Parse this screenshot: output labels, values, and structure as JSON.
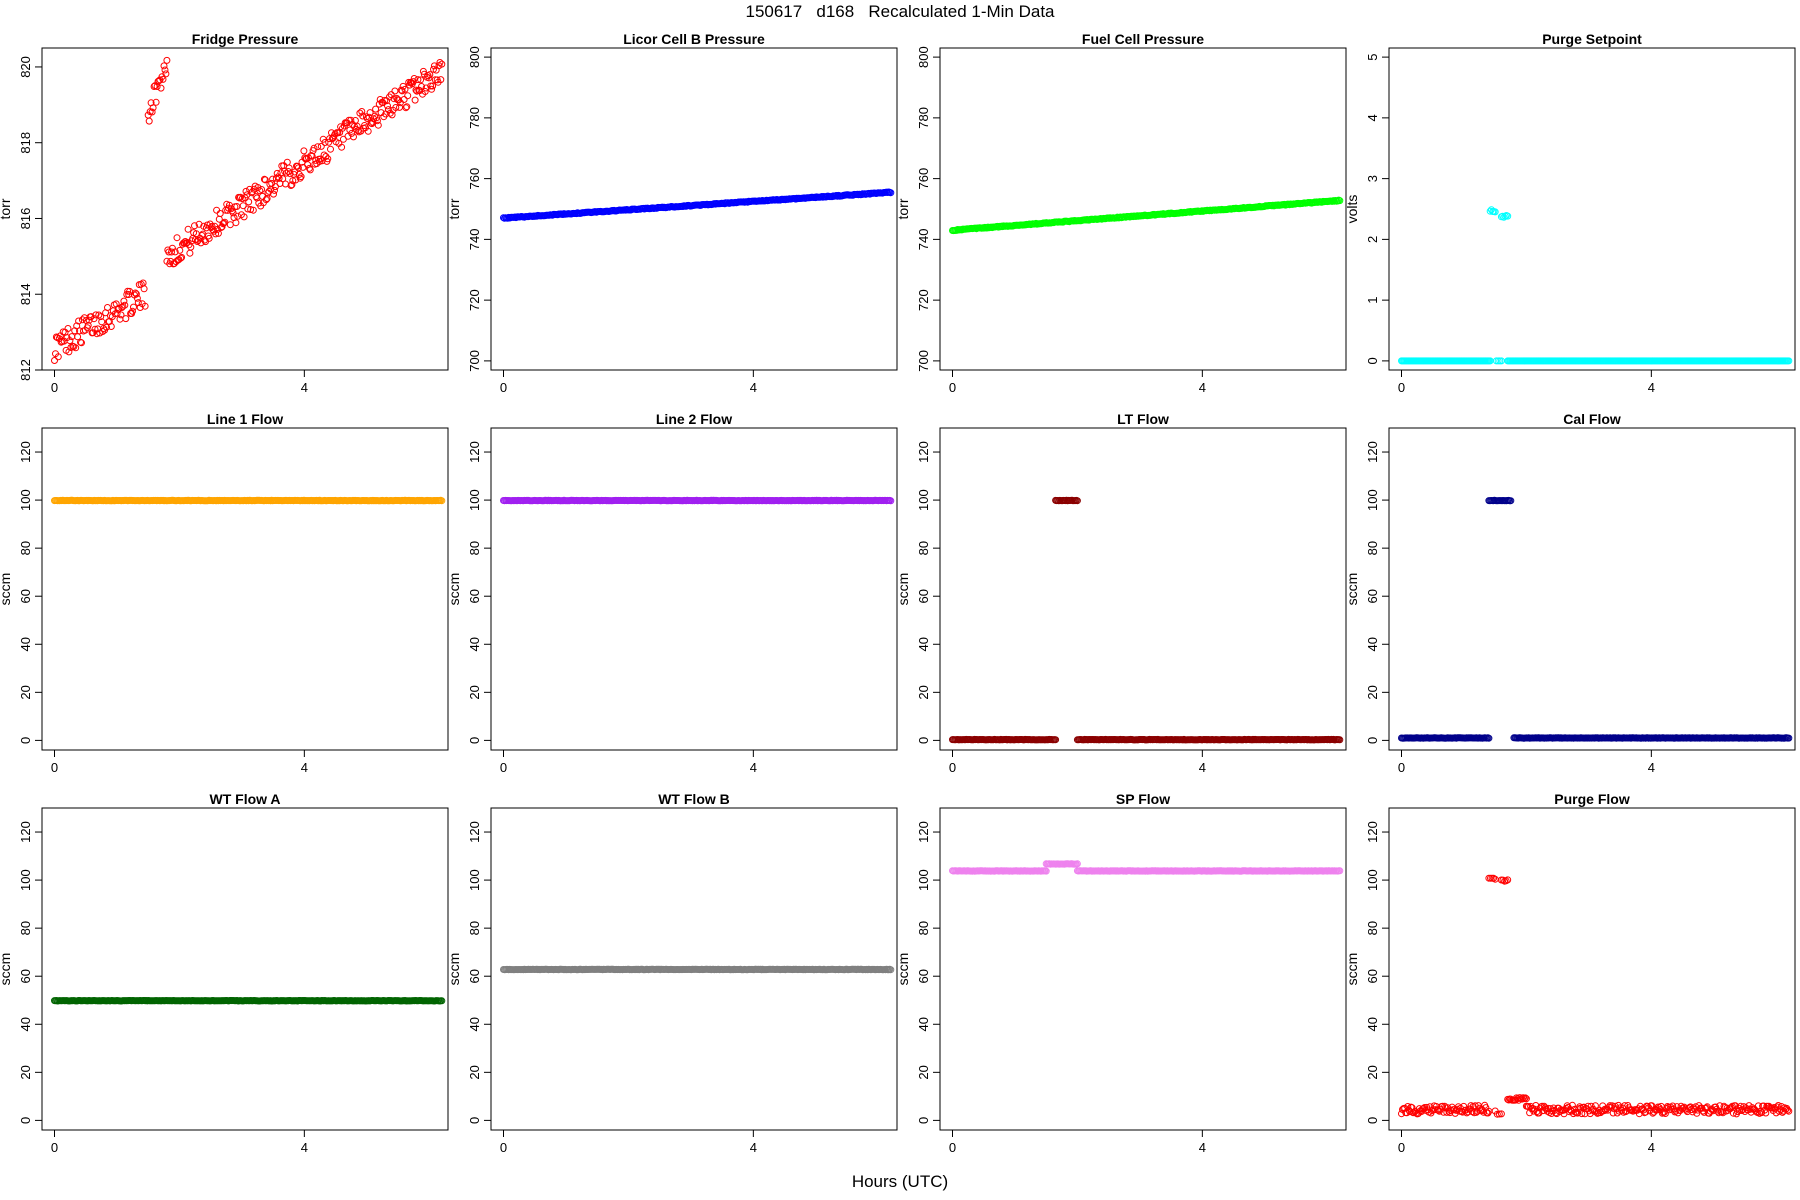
{
  "figure": {
    "title": "150617   d168   Recalculated 1-Min Data",
    "xlabel": "Hours (UTC)"
  },
  "chart_data": [
    {
      "type": "scatter",
      "title": "Fridge Pressure",
      "ylabel": "torr",
      "color": "#ff0000",
      "marker": "open-circle",
      "xlim": [
        -0.2,
        6.3
      ],
      "ylim": [
        812,
        820.5
      ],
      "xticks": [
        0,
        4
      ],
      "yticks": [
        812,
        814,
        816,
        818,
        820
      ],
      "segments": [
        {
          "x0": 0.0,
          "x1": 1.45,
          "y0": 812.6,
          "y1": 814.0,
          "noise": 0.35,
          "n": 95
        },
        {
          "x0": 1.5,
          "x1": 1.8,
          "y0": 818.8,
          "y1": 820.1,
          "noise": 0.3,
          "n": 20
        },
        {
          "x0": 1.8,
          "x1": 6.2,
          "y0": 815.0,
          "y1": 819.9,
          "noise": 0.35,
          "n": 300
        }
      ]
    },
    {
      "type": "scatter",
      "title": "Licor Cell B Pressure",
      "ylabel": "torr",
      "color": "#0000ff",
      "marker": "open-circle",
      "xlim": [
        -0.2,
        6.3
      ],
      "ylim": [
        697,
        803
      ],
      "xticks": [
        0,
        4
      ],
      "yticks": [
        700,
        720,
        740,
        760,
        780,
        800
      ],
      "segments": [
        {
          "x0": 0.0,
          "x1": 6.2,
          "y0": 747.0,
          "y1": 755.5,
          "noise": 0.15,
          "n": 372
        }
      ]
    },
    {
      "type": "scatter",
      "title": "Fuel Cell Pressure",
      "ylabel": "torr",
      "color": "#00ff00",
      "marker": "open-circle",
      "xlim": [
        -0.2,
        6.3
      ],
      "ylim": [
        697,
        803
      ],
      "xticks": [
        0,
        4
      ],
      "yticks": [
        700,
        720,
        740,
        760,
        780,
        800
      ],
      "segments": [
        {
          "x0": 0.0,
          "x1": 6.2,
          "y0": 743.0,
          "y1": 752.8,
          "noise": 0.15,
          "n": 372
        }
      ]
    },
    {
      "type": "scatter",
      "title": "Purge Setpoint",
      "ylabel": "volts",
      "color": "#00ffff",
      "marker": "open-circle",
      "xlim": [
        -0.2,
        6.3
      ],
      "ylim": [
        -0.15,
        5.15
      ],
      "xticks": [
        0,
        4
      ],
      "yticks": [
        0,
        1,
        2,
        3,
        4,
        5
      ],
      "segments": [
        {
          "x0": 0.0,
          "x1": 1.42,
          "y0": 0.0,
          "y1": 0.0,
          "noise": 0.0,
          "n": 86
        },
        {
          "x0": 1.42,
          "x1": 1.5,
          "y0": 2.47,
          "y1": 2.47,
          "noise": 0.02,
          "n": 5
        },
        {
          "x0": 1.52,
          "x1": 1.6,
          "y0": 0.0,
          "y1": 0.0,
          "noise": 0.0,
          "n": 4
        },
        {
          "x0": 1.6,
          "x1": 1.7,
          "y0": 2.38,
          "y1": 2.38,
          "noise": 0.02,
          "n": 6
        },
        {
          "x0": 1.7,
          "x1": 6.2,
          "y0": 0.0,
          "y1": 0.0,
          "noise": 0.0,
          "n": 270
        }
      ]
    },
    {
      "type": "scatter",
      "title": "Line 1 Flow",
      "ylabel": "sccm",
      "color": "#ffa500",
      "marker": "open-circle",
      "xlim": [
        -0.2,
        6.3
      ],
      "ylim": [
        -4,
        130
      ],
      "xticks": [
        0,
        4
      ],
      "yticks": [
        0,
        20,
        40,
        60,
        80,
        100,
        120
      ],
      "segments": [
        {
          "x0": 0.0,
          "x1": 6.2,
          "y0": 99.8,
          "y1": 99.8,
          "noise": 0.1,
          "n": 372
        }
      ]
    },
    {
      "type": "scatter",
      "title": "Line 2 Flow",
      "ylabel": "sccm",
      "color": "#a020f0",
      "marker": "open-circle",
      "xlim": [
        -0.2,
        6.3
      ],
      "ylim": [
        -4,
        130
      ],
      "xticks": [
        0,
        4
      ],
      "yticks": [
        0,
        20,
        40,
        60,
        80,
        100,
        120
      ],
      "segments": [
        {
          "x0": 0.0,
          "x1": 6.2,
          "y0": 99.8,
          "y1": 99.8,
          "noise": 0.1,
          "n": 372
        }
      ]
    },
    {
      "type": "scatter",
      "title": "LT Flow",
      "ylabel": "sccm",
      "color": "#8b0000",
      "marker": "open-circle",
      "xlim": [
        -0.2,
        6.3
      ],
      "ylim": [
        -4,
        130
      ],
      "xticks": [
        0,
        4
      ],
      "yticks": [
        0,
        20,
        40,
        60,
        80,
        100,
        120
      ],
      "segments": [
        {
          "x0": 0.0,
          "x1": 1.65,
          "y0": 0.3,
          "y1": 0.3,
          "noise": 0.1,
          "n": 99
        },
        {
          "x0": 1.65,
          "x1": 2.0,
          "y0": 99.8,
          "y1": 99.8,
          "noise": 0.1,
          "n": 21
        },
        {
          "x0": 2.0,
          "x1": 6.2,
          "y0": 0.3,
          "y1": 0.3,
          "noise": 0.1,
          "n": 252
        }
      ]
    },
    {
      "type": "scatter",
      "title": "Cal Flow",
      "ylabel": "sccm",
      "color": "#00008b",
      "marker": "open-circle",
      "xlim": [
        -0.2,
        6.3
      ],
      "ylim": [
        -4,
        130
      ],
      "xticks": [
        0,
        4
      ],
      "yticks": [
        0,
        20,
        40,
        60,
        80,
        100,
        120
      ],
      "segments": [
        {
          "x0": 0.0,
          "x1": 1.4,
          "y0": 1.0,
          "y1": 1.0,
          "noise": 0.1,
          "n": 84
        },
        {
          "x0": 1.4,
          "x1": 1.75,
          "y0": 99.8,
          "y1": 99.8,
          "noise": 0.1,
          "n": 21
        },
        {
          "x0": 1.8,
          "x1": 6.2,
          "y0": 1.0,
          "y1": 1.0,
          "noise": 0.1,
          "n": 264
        }
      ]
    },
    {
      "type": "scatter",
      "title": "WT Flow A",
      "ylabel": "sccm",
      "color": "#006400",
      "marker": "open-circle",
      "xlim": [
        -0.2,
        6.3
      ],
      "ylim": [
        -4,
        130
      ],
      "xticks": [
        0,
        4
      ],
      "yticks": [
        0,
        20,
        40,
        60,
        80,
        100,
        120
      ],
      "segments": [
        {
          "x0": 0.0,
          "x1": 6.2,
          "y0": 49.8,
          "y1": 49.8,
          "noise": 0.1,
          "n": 372
        }
      ]
    },
    {
      "type": "scatter",
      "title": "WT Flow B",
      "ylabel": "sccm",
      "color": "#808080",
      "marker": "open-circle",
      "xlim": [
        -0.2,
        6.3
      ],
      "ylim": [
        -4,
        130
      ],
      "xticks": [
        0,
        4
      ],
      "yticks": [
        0,
        20,
        40,
        60,
        80,
        100,
        120
      ],
      "segments": [
        {
          "x0": 0.0,
          "x1": 6.2,
          "y0": 62.8,
          "y1": 62.8,
          "noise": 0.1,
          "n": 372
        }
      ]
    },
    {
      "type": "scatter",
      "title": "SP Flow",
      "ylabel": "sccm",
      "color": "#ee82ee",
      "marker": "open-circle",
      "xlim": [
        -0.2,
        6.3
      ],
      "ylim": [
        -4,
        130
      ],
      "xticks": [
        0,
        4
      ],
      "yticks": [
        0,
        20,
        40,
        60,
        80,
        100,
        120
      ],
      "segments": [
        {
          "x0": 0.0,
          "x1": 1.5,
          "y0": 103.8,
          "y1": 103.8,
          "noise": 0.1,
          "n": 90
        },
        {
          "x0": 1.5,
          "x1": 2.0,
          "y0": 106.7,
          "y1": 106.7,
          "noise": 0.1,
          "n": 30
        },
        {
          "x0": 2.0,
          "x1": 6.2,
          "y0": 103.8,
          "y1": 103.8,
          "noise": 0.1,
          "n": 252
        }
      ]
    },
    {
      "type": "scatter",
      "title": "Purge Flow",
      "ylabel": "sccm",
      "color": "#ff0000",
      "marker": "open-circle",
      "xlim": [
        -0.2,
        6.3
      ],
      "ylim": [
        -4,
        130
      ],
      "xticks": [
        0,
        4
      ],
      "yticks": [
        0,
        20,
        40,
        60,
        80,
        100,
        120
      ],
      "segments": [
        {
          "x0": 0.0,
          "x1": 1.4,
          "y0": 4.5,
          "y1": 4.5,
          "noise": 1.8,
          "n": 84
        },
        {
          "x0": 1.4,
          "x1": 1.5,
          "y0": 100.3,
          "y1": 100.3,
          "noise": 0.5,
          "n": 5
        },
        {
          "x0": 1.5,
          "x1": 1.6,
          "y0": 3.0,
          "y1": 3.0,
          "noise": 1.5,
          "n": 4
        },
        {
          "x0": 1.6,
          "x1": 1.7,
          "y0": 100.0,
          "y1": 100.0,
          "noise": 0.5,
          "n": 5
        },
        {
          "x0": 1.7,
          "x1": 2.0,
          "y0": 8.5,
          "y1": 8.5,
          "noise": 1.0,
          "n": 18
        },
        {
          "x0": 2.0,
          "x1": 6.2,
          "y0": 4.5,
          "y1": 4.5,
          "noise": 1.8,
          "n": 252
        }
      ]
    }
  ]
}
